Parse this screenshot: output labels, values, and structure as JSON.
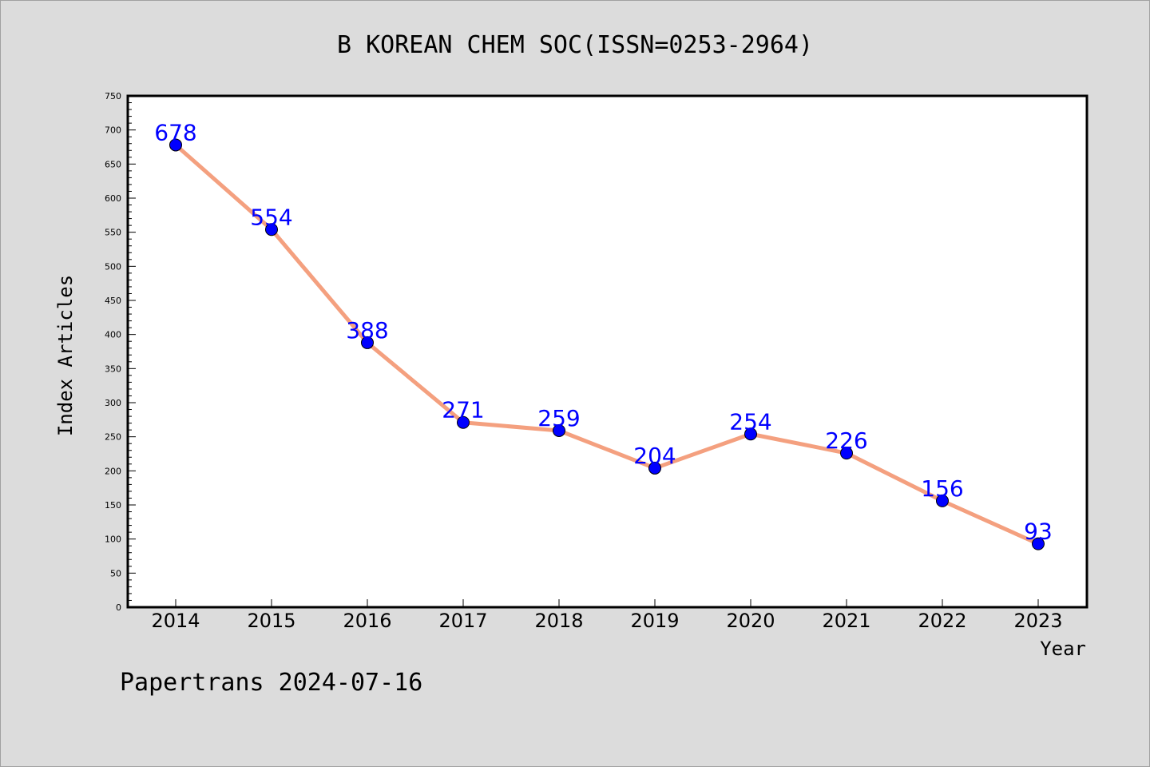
{
  "colors": {
    "background": "#dcdcdc",
    "plot_background": "#ffffff",
    "line": "#f4a07f",
    "marker": "#0000ff",
    "data_label": "#0000ff"
  },
  "footer": "Papertrans 2024-07-16",
  "chart_data": {
    "type": "line",
    "title": "B KOREAN CHEM SOC(ISSN=0253-2964)",
    "xlabel": "Year",
    "ylabel": "Index Articles",
    "categories": [
      "2014",
      "2015",
      "2016",
      "2017",
      "2018",
      "2019",
      "2020",
      "2021",
      "2022",
      "2023"
    ],
    "series": [
      {
        "values": [
          678,
          554,
          388,
          271,
          259,
          204,
          254,
          226,
          156,
          93
        ]
      }
    ],
    "ylim": [
      0,
      750
    ],
    "yticks": [
      0,
      50,
      100,
      150,
      200,
      250,
      300,
      350,
      400,
      450,
      500,
      550,
      600,
      650,
      700,
      750
    ],
    "grid": false,
    "legend": "none",
    "markers": "filled circles",
    "data_labels": true
  }
}
